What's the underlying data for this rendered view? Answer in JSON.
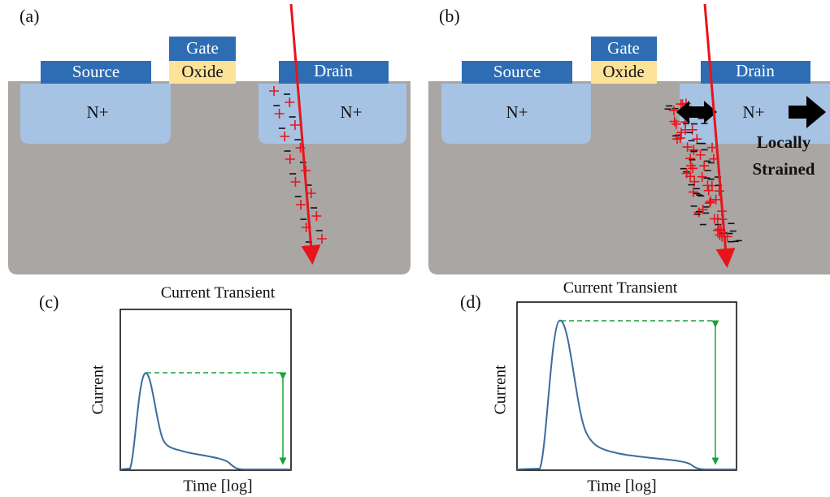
{
  "panels": [
    {
      "label": "(a)",
      "source": "Source",
      "gate": "Gate",
      "oxide": "Oxide",
      "drain": "Drain",
      "n_plus": [
        "N+",
        "N+"
      ]
    },
    {
      "label": "(b)",
      "source": "Source",
      "gate": "Gate",
      "oxide": "Oxide",
      "drain": "Drain",
      "n_plus": [
        "N+",
        "N+"
      ],
      "annotation": [
        "Locally",
        "Strained"
      ]
    }
  ],
  "graphs": [
    {
      "label": "(c)",
      "title": "Current Transient",
      "y_label": "Current",
      "x_label": "Time [log]"
    },
    {
      "label": "(d)",
      "title": "Current Transient",
      "y_label": "Current",
      "x_label": "Time [log]"
    }
  ]
}
